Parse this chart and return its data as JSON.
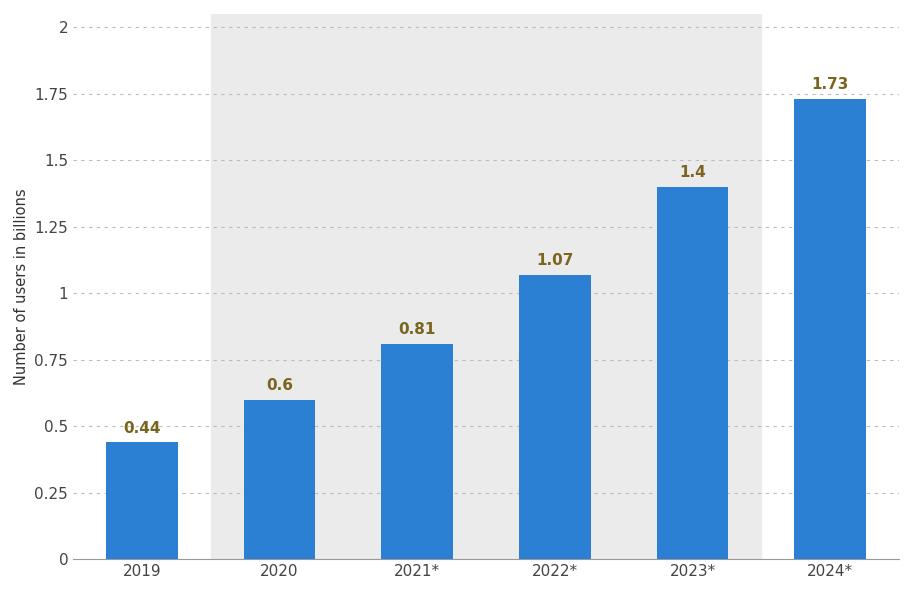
{
  "categories": [
    "2019",
    "2020",
    "2021*",
    "2022*",
    "2023*",
    "2024*"
  ],
  "values": [
    0.44,
    0.6,
    0.81,
    1.07,
    1.4,
    1.73
  ],
  "bar_color": "#2b80d4",
  "bar_width": 0.52,
  "ylabel": "Number of users in billions",
  "ylim": [
    0,
    2.05
  ],
  "yticks": [
    0,
    0.25,
    0.5,
    0.75,
    1.0,
    1.25,
    1.5,
    1.75,
    2.0
  ],
  "label_color": "#7a6520",
  "label_fontsize": 11,
  "ylabel_fontsize": 10.5,
  "tick_fontsize": 11,
  "grid_color": "#bbbbbb",
  "bg_color": "#ffffff",
  "band_color": "#ebebeb",
  "band_ranges": [
    [
      0.5,
      2.5
    ],
    [
      2.5,
      4.5
    ]
  ],
  "figsize": [
    9.13,
    5.93
  ],
  "dpi": 100
}
